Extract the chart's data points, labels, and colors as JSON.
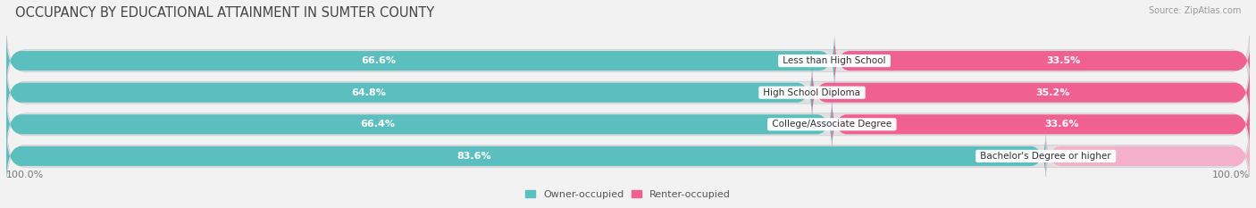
{
  "title": "OCCUPANCY BY EDUCATIONAL ATTAINMENT IN SUMTER COUNTY",
  "source": "Source: ZipAtlas.com",
  "categories": [
    "Less than High School",
    "High School Diploma",
    "College/Associate Degree",
    "Bachelor's Degree or higher"
  ],
  "owner_values": [
    66.6,
    64.8,
    66.4,
    83.6
  ],
  "renter_values": [
    33.5,
    35.2,
    33.6,
    16.4
  ],
  "owner_color": "#5bbfbf",
  "renter_colors": [
    "#f06090",
    "#f06090",
    "#f06090",
    "#f4b0c8"
  ],
  "background_color": "#f2f2f2",
  "bar_bg_color": "#e0e0e0",
  "bar_shadow_color": "#cccccc",
  "title_fontsize": 10.5,
  "label_fontsize": 8,
  "pct_fontsize": 8,
  "tick_fontsize": 8,
  "bar_height": 0.62,
  "left_label": "100.0%",
  "right_label": "100.0%",
  "legend_owner": "Owner-occupied",
  "legend_renter": "Renter-occupied"
}
